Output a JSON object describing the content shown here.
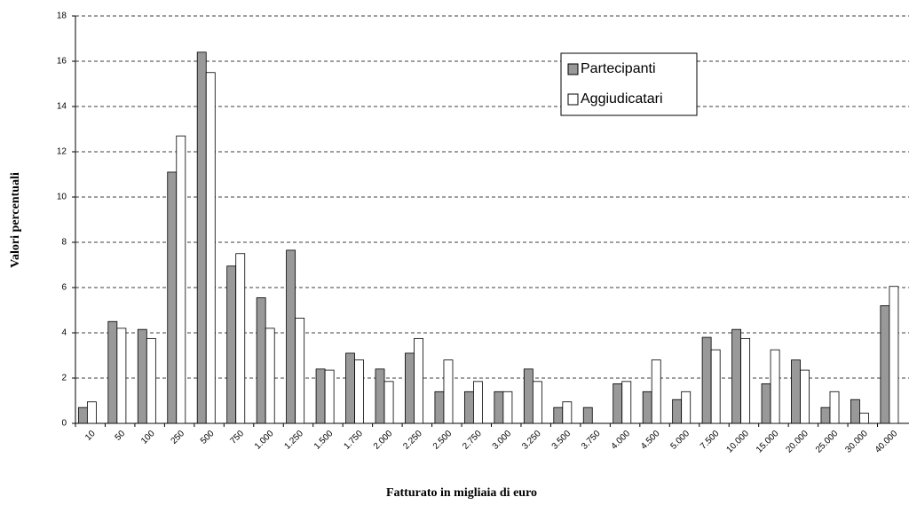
{
  "chart_data": {
    "type": "bar",
    "xlabel": "Fatturato in migliaia di euro",
    "ylabel": "Valori percentuali",
    "categories": [
      "10",
      "50",
      "100",
      "250",
      "500",
      "750",
      "1.000",
      "1.250",
      "1.500",
      "1.750",
      "2.000",
      "2.250",
      "2.500",
      "2.750",
      "3.000",
      "3.250",
      "3.500",
      "3.750",
      "4.000",
      "4.500",
      "5.000",
      "7.500",
      "10.000",
      "15.000",
      "20.000",
      "25.000",
      "30.000",
      "40.000"
    ],
    "series": [
      {
        "name": "Partecipanti",
        "color": "#999999",
        "values": [
          0.7,
          4.5,
          4.15,
          11.1,
          16.4,
          6.95,
          5.55,
          7.65,
          2.4,
          3.1,
          2.4,
          3.1,
          1.4,
          1.4,
          1.4,
          2.4,
          0.7,
          0.7,
          1.75,
          1.4,
          1.05,
          3.8,
          4.15,
          1.75,
          2.8,
          0.7,
          1.05,
          5.2
        ]
      },
      {
        "name": "Aggiudicatari",
        "color": "#ffffff",
        "values": [
          0.95,
          4.2,
          3.75,
          12.7,
          15.5,
          7.5,
          4.2,
          4.65,
          2.35,
          2.8,
          1.85,
          3.75,
          2.8,
          1.85,
          1.4,
          1.85,
          0.95,
          0,
          1.85,
          2.8,
          1.4,
          3.25,
          3.75,
          3.25,
          2.35,
          1.4,
          0.45,
          6.05
        ]
      }
    ],
    "ylim": [
      0,
      18
    ],
    "yticks": [
      0,
      2,
      4,
      6,
      8,
      10,
      12,
      14,
      16,
      18
    ],
    "grid": true,
    "legend": "top-right"
  }
}
